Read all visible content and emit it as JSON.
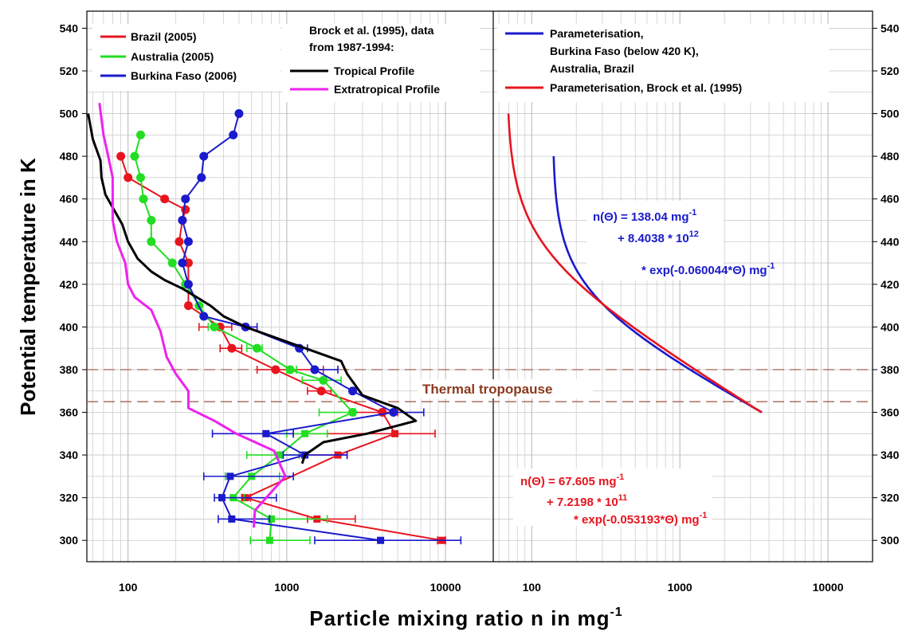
{
  "chart_data": {
    "type": "line",
    "xlabel": "Particle mixing ratio n in mg",
    "xlabel_sup": "-1",
    "ylabel": "Potential temperature in K",
    "x_scale": "log",
    "xlim": [
      55,
      20000
    ],
    "ylim": [
      290,
      548
    ],
    "grid": true,
    "x_ticks": [
      "100",
      "1000",
      "10000"
    ],
    "y_ticks": [
      "300",
      "320",
      "340",
      "360",
      "380",
      "400",
      "420",
      "440",
      "460",
      "480",
      "500",
      "520",
      "540"
    ],
    "colors": {
      "brazil": "#e8141e",
      "australia": "#22dd22",
      "burkina": "#1a1acc",
      "tropical": "#000000",
      "extratropical": "#ee22ee",
      "param_blue": "#1a1acc",
      "param_red": "#e8141e",
      "tropopause": "#a0523c"
    },
    "left_panel": {
      "legend_left": {
        "brazil": "Brazil (2005)",
        "australia": "Australia (2005)",
        "burkina": "Burkina Faso (2006)"
      },
      "legend_mid": {
        "header": [
          "Brock et al. (1995), data",
          "from 1987-1994:"
        ],
        "tropical": "Tropical Profile",
        "extratropical": "Extratropical Profile"
      },
      "series": [
        {
          "name": "Brazil (2005)",
          "key": "brazil",
          "points": [
            [
              9500,
              300
            ],
            [
              1550,
              310
            ],
            [
              550,
              320
            ],
            [
              2100,
              340
            ],
            [
              4800,
              350
            ],
            [
              4000,
              360
            ],
            [
              1650,
              370
            ],
            [
              850,
              380
            ],
            [
              450,
              390
            ],
            [
              380,
              400
            ],
            [
              240,
              410
            ],
            [
              240,
              430
            ],
            [
              210,
              440
            ],
            [
              220,
              450
            ],
            [
              230,
              455
            ],
            [
              170,
              460
            ],
            [
              100,
              470
            ],
            [
              90,
              480
            ]
          ],
          "xerr_low": [
            8900,
            1350,
            520,
            1200,
            1100,
            2700,
            1350,
            650,
            380,
            280,
            null,
            null,
            null,
            null,
            null,
            null,
            null,
            null
          ],
          "xerr_high": [
            10000,
            2700,
            590,
            2400,
            8600,
            5000,
            1900,
            1700,
            520,
            450,
            null,
            null,
            null,
            null,
            null,
            null,
            null,
            null
          ],
          "square_from": 300,
          "square_to": 350
        },
        {
          "name": "Australia (2005)",
          "key": "australia",
          "points": [
            [
              780,
              300
            ],
            [
              800,
              310
            ],
            [
              460,
              320
            ],
            [
              600,
              330
            ],
            [
              900,
              340
            ],
            [
              1300,
              350
            ],
            [
              2600,
              360
            ],
            [
              1700,
              375
            ],
            [
              1050,
              380
            ],
            [
              650,
              390
            ],
            [
              350,
              400
            ],
            [
              280,
              410
            ],
            [
              230,
              420
            ],
            [
              190,
              430
            ],
            [
              140,
              440
            ],
            [
              140,
              450
            ],
            [
              125,
              460
            ],
            [
              120,
              470
            ],
            [
              110,
              480
            ],
            [
              120,
              490
            ]
          ],
          "xerr_low": [
            590,
            620,
            380,
            410,
            560,
            1000,
            1600,
            1250,
            1000,
            560,
            null,
            null,
            null,
            null,
            null,
            null,
            null,
            null,
            null,
            null
          ],
          "xerr_high": [
            1400,
            1800,
            540,
            900,
            1200,
            1800,
            2700,
            2200,
            1150,
            700,
            320,
            null,
            null,
            null,
            null,
            null,
            null,
            null,
            null,
            null
          ],
          "square_from": 300,
          "square_to": 350
        },
        {
          "name": "Burkina Faso (2006)",
          "key": "burkina",
          "points": [
            [
              3900,
              300
            ],
            [
              450,
              310
            ],
            [
              390,
              320
            ],
            [
              440,
              330
            ],
            [
              1300,
              340
            ],
            [
              740,
              350
            ],
            [
              4700,
              360
            ],
            [
              2600,
              370
            ],
            [
              1500,
              380
            ],
            [
              1200,
              390
            ],
            [
              550,
              400
            ],
            [
              300,
              405
            ],
            [
              240,
              420
            ],
            [
              220,
              430
            ],
            [
              240,
              440
            ],
            [
              220,
              450
            ],
            [
              230,
              460
            ],
            [
              290,
              470
            ],
            [
              300,
              480
            ],
            [
              460,
              490
            ],
            [
              500,
              500
            ]
          ],
          "xerr_low": [
            1500,
            370,
            350,
            300,
            950,
            340,
            null,
            null,
            null,
            null,
            null,
            null,
            null,
            null,
            null,
            null,
            null,
            null,
            null,
            null,
            null
          ],
          "xerr_high": [
            12500,
            780,
            860,
            1100,
            2400,
            1100,
            7300,
            null,
            2100,
            1350,
            650,
            null,
            null,
            null,
            null,
            null,
            null,
            null,
            null,
            null,
            null
          ],
          "square_from": 300,
          "square_to": 350
        },
        {
          "name": "Tropical Profile",
          "key": "tropical",
          "points": [
            [
              1250,
              336
            ],
            [
              1300,
              340
            ],
            [
              1700,
              346
            ],
            [
              3200,
              350
            ],
            [
              6500,
              356
            ],
            [
              5000,
              362
            ],
            [
              3000,
              368
            ],
            [
              2400,
              378
            ],
            [
              2200,
              384
            ],
            [
              1100,
              392
            ],
            [
              550,
              400
            ],
            [
              400,
              405
            ],
            [
              330,
              410
            ],
            [
              270,
              414
            ],
            [
              220,
              418
            ],
            [
              170,
              422
            ],
            [
              140,
              426
            ],
            [
              115,
              432
            ],
            [
              100,
              440
            ],
            [
              92,
              448
            ],
            [
              80,
              456
            ],
            [
              72,
              462
            ],
            [
              68,
              470
            ],
            [
              67,
              478
            ],
            [
              60,
              488
            ],
            [
              56,
              500
            ]
          ],
          "xerr_low": [],
          "xerr_high": []
        },
        {
          "name": "Extratropical Profile",
          "key": "extratropical",
          "points": [
            [
              620,
              306
            ],
            [
              630,
              314
            ],
            [
              980,
              330
            ],
            [
              830,
              342
            ],
            [
              480,
              350
            ],
            [
              350,
              356
            ],
            [
              240,
              362
            ],
            [
              240,
              370
            ],
            [
              200,
              378
            ],
            [
              175,
              386
            ],
            [
              160,
              398
            ],
            [
              140,
              408
            ],
            [
              110,
              414
            ],
            [
              100,
              420
            ],
            [
              96,
              430
            ],
            [
              85,
              440
            ],
            [
              80,
              450
            ],
            [
              80,
              460
            ],
            [
              80,
              470
            ],
            [
              75,
              480
            ],
            [
              70,
              490
            ],
            [
              66,
              505
            ]
          ],
          "xerr_low": [],
          "xerr_high": []
        }
      ]
    },
    "right_panel": {
      "legend": {
        "blue": [
          "Parameterisation,",
          "Burkina Faso (below 420 K),",
          "Australia, Brazil"
        ],
        "red": "Parameterisation, Brock et al. (1995)"
      },
      "tropopause_label": "Thermal tropopause",
      "tropopause_levels": [
        365,
        380
      ],
      "params": {
        "blue": {
          "a": 138.04,
          "b": 8403800000000.0,
          "k": 0.060044,
          "theta_range": [
            360,
            480
          ]
        },
        "red": {
          "a": 67.605,
          "b": 721980000000.0,
          "k": 0.053193,
          "theta_range": [
            360,
            500
          ]
        }
      },
      "equation_blue": {
        "line1_pre": "n(",
        "theta": "Θ",
        "line1_post": ") = 138.04 mg",
        "line1_sup": "-1",
        "line2": "+ 8.4038 * 10",
        "line2_sup": "12",
        "line3": "* exp(-0.060044*Θ) mg",
        "line3_sup": "-1"
      },
      "equation_red": {
        "line1_pre": "n(",
        "theta": "Θ",
        "line1_post": ") = 67.605 mg",
        "line1_sup": "-1",
        "line2": "+ 7.2198 * 10",
        "line2_sup": "11",
        "line3": "* exp(-0.053193*Θ) mg",
        "line3_sup": "-1"
      }
    }
  }
}
